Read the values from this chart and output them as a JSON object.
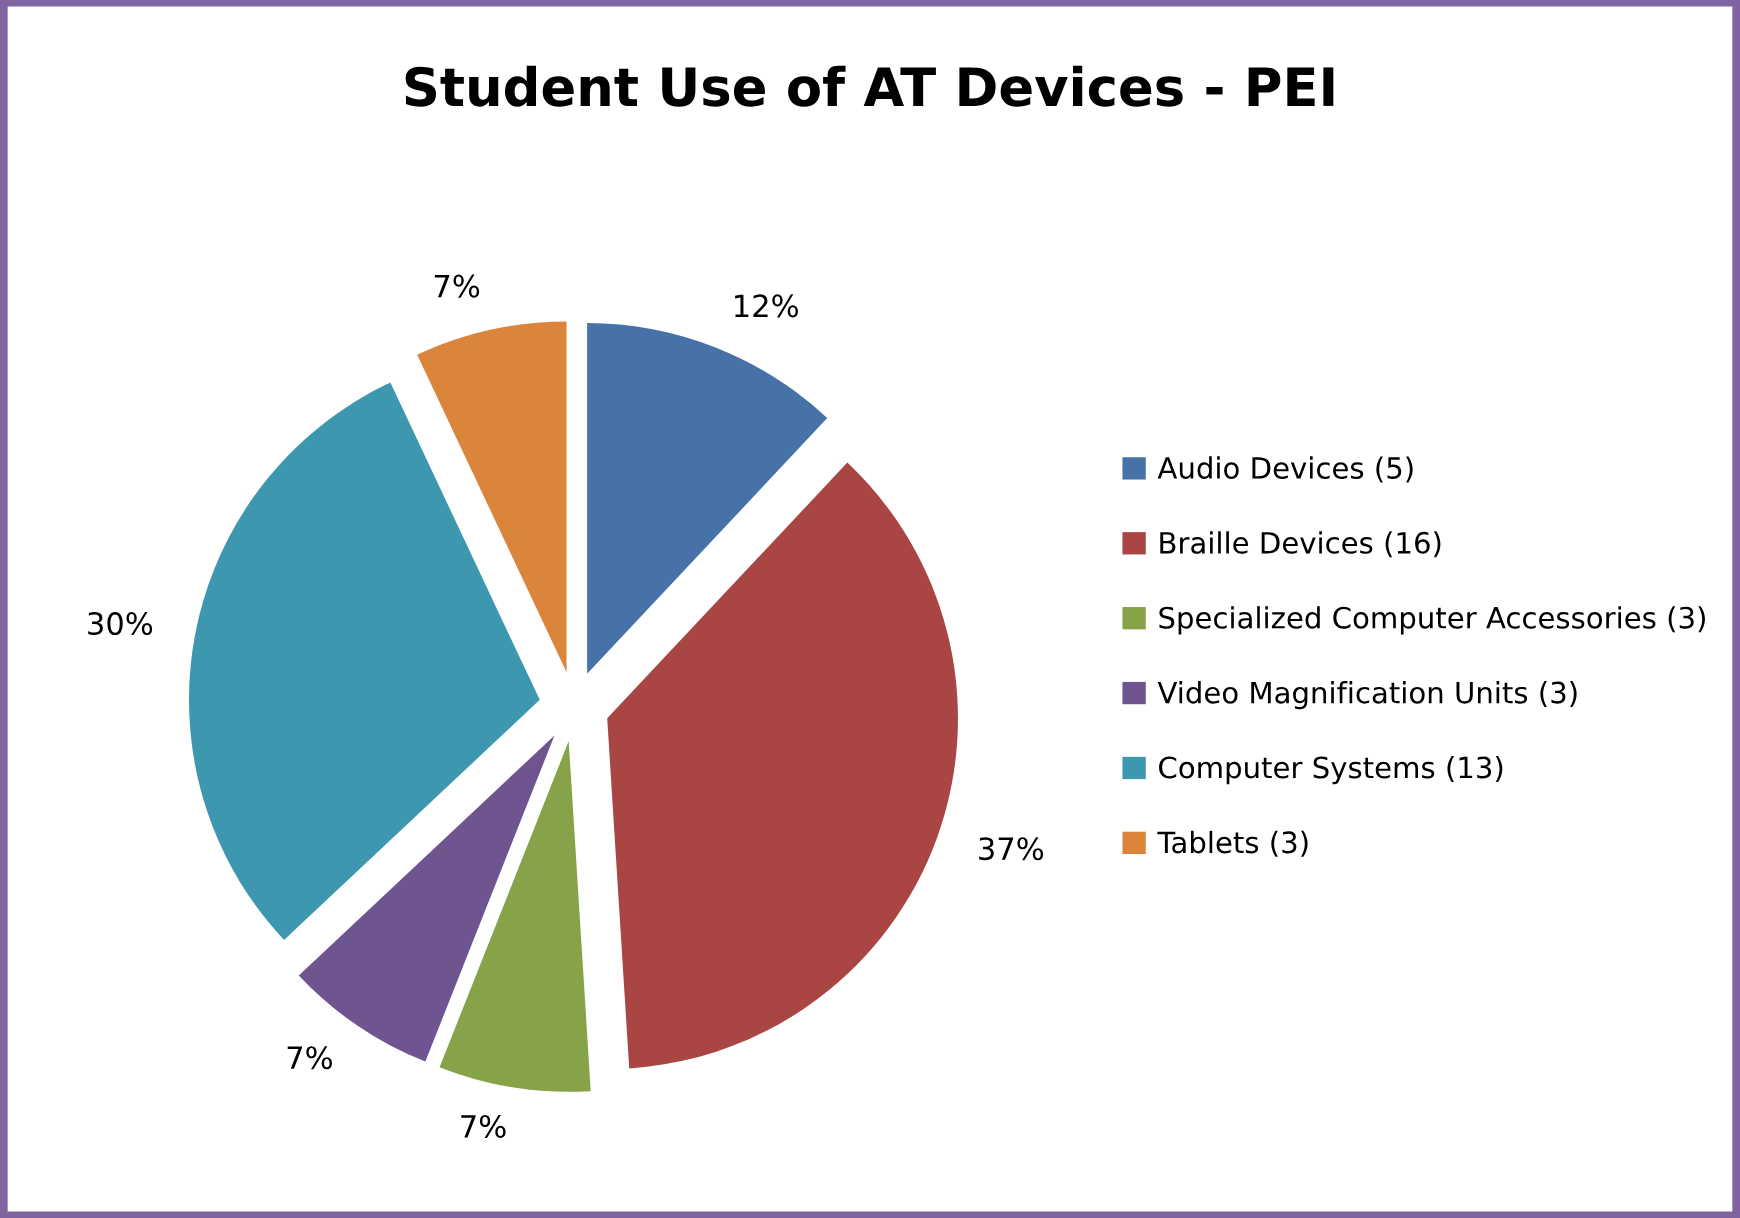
{
  "chart_data": {
    "type": "pie",
    "title": "Student Use of AT Devices - PEI",
    "categories": [
      "Audio Devices (5)",
      "Braille Devices (16)",
      "Specialized Computer Accessories (3)",
      "Video Magnification Units (3)",
      "Computer Systems (13)",
      "Tablets (3)"
    ],
    "values": [
      12,
      37,
      7,
      7,
      30,
      7
    ],
    "value_labels": [
      "12%",
      "37%",
      "7%",
      "7%",
      "30%",
      "7%"
    ],
    "colors": [
      "#4672a8",
      "#a94543",
      "#86a34a",
      "#6e5590",
      "#3d97ae",
      "#da843c"
    ],
    "legend": "right"
  }
}
